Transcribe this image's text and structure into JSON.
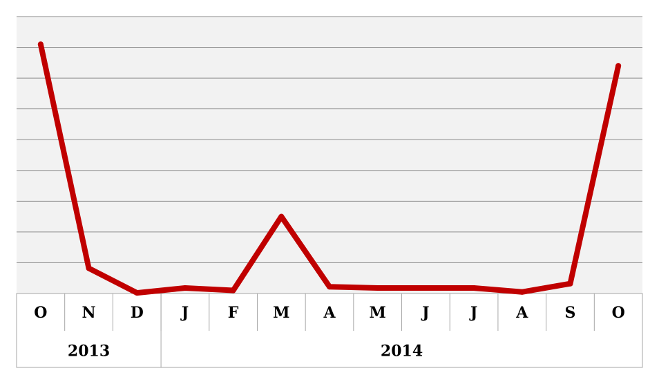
{
  "chart_data": {
    "type": "line",
    "title": "",
    "xlabel": "",
    "ylabel": "",
    "categories": [
      "O",
      "N",
      "D",
      "J",
      "F",
      "M",
      "A",
      "M",
      "J",
      "J",
      "A",
      "S",
      "O"
    ],
    "category_groups": [
      {
        "label": "2013",
        "count": 3
      },
      {
        "label": "2014",
        "count": 10
      }
    ],
    "series": [
      {
        "values": [
          8.1,
          0.82,
          0.02,
          0.18,
          0.1,
          2.5,
          0.22,
          0.18,
          0.18,
          0.18,
          0.05,
          0.32,
          7.4
        ],
        "color": "#c00000"
      }
    ],
    "ylim": [
      0,
      9
    ],
    "y_gridlines": 9,
    "grid": true,
    "y_tick_labels_shown": false,
    "legend": "none",
    "colors": {
      "line": "#c00000",
      "plot_background": "#f2f2f2",
      "gridline": "#8c8c8c"
    }
  }
}
